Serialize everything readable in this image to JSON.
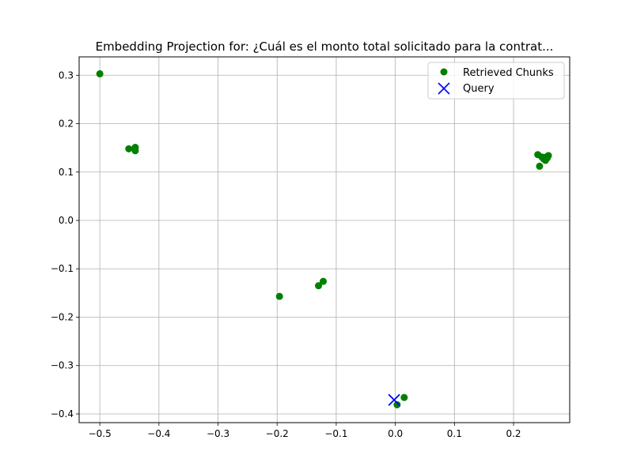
{
  "chart_data": {
    "type": "scatter",
    "title": "Embedding Projection for: ¿Cuál es el monto total solicitado para la contrat...",
    "xlim": [
      -0.535,
      0.295
    ],
    "ylim": [
      -0.418,
      0.338
    ],
    "xticks": [
      -0.5,
      -0.4,
      -0.3,
      -0.2,
      -0.1,
      0.0,
      0.1,
      0.2
    ],
    "xtick_labels": [
      "−0.5",
      "−0.4",
      "−0.3",
      "−0.2",
      "−0.1",
      "0.0",
      "0.1",
      "0.2"
    ],
    "yticks": [
      -0.4,
      -0.3,
      -0.2,
      -0.1,
      0.0,
      0.1,
      0.2,
      0.3
    ],
    "ytick_labels": [
      "−0.4",
      "−0.3",
      "−0.2",
      "−0.1",
      "0.0",
      "0.1",
      "0.2",
      "0.3"
    ],
    "grid": true,
    "legend_position": "top-right",
    "series": [
      {
        "name": "Retrieved Chunks",
        "marker": "circle",
        "color": "#008000",
        "points": [
          [
            -0.5,
            0.303
          ],
          [
            -0.451,
            0.148
          ],
          [
            -0.44,
            0.151
          ],
          [
            -0.44,
            0.144
          ],
          [
            -0.196,
            -0.157
          ],
          [
            -0.13,
            -0.135
          ],
          [
            -0.122,
            -0.126
          ],
          [
            0.003,
            -0.381
          ],
          [
            0.015,
            -0.366
          ],
          [
            0.241,
            0.136
          ],
          [
            0.244,
            0.112
          ],
          [
            0.248,
            0.131
          ],
          [
            0.251,
            0.127
          ],
          [
            0.254,
            0.124
          ],
          [
            0.257,
            0.129
          ],
          [
            0.259,
            0.134
          ],
          [
            0.255,
            0.131
          ]
        ]
      },
      {
        "name": "Query",
        "marker": "x",
        "color": "#0000ff",
        "points": [
          [
            -0.002,
            -0.371
          ]
        ]
      }
    ]
  }
}
